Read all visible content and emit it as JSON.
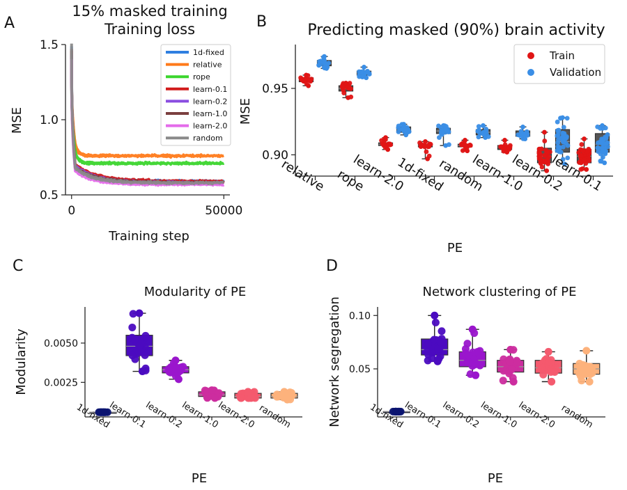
{
  "chart_data": [
    {
      "panel_label": "A",
      "type": "line",
      "title_line1": "15% masked training",
      "title_line2": "Training loss",
      "xlabel": "Training step",
      "ylabel": "MSE",
      "xlim": [
        -2000,
        52000
      ],
      "ylim": [
        0.5,
        1.5
      ],
      "xticks": [
        0,
        50000
      ],
      "xtick_labels": [
        "0",
        "50000"
      ],
      "yticks": [
        0.5,
        1.0,
        1.5
      ],
      "ytick_labels": [
        "0.5",
        "1.0",
        "1.5"
      ],
      "legend_position": "top-right",
      "series": [
        {
          "name": "1d-fixed",
          "color": "#2f7fe0",
          "start": 1.49,
          "plateau": 0.6,
          "final": 0.59,
          "tau": 7000
        },
        {
          "name": "relative",
          "color": "#ff7a1a",
          "start": 1.38,
          "plateau": 0.76,
          "final": 0.76,
          "tau": 1000
        },
        {
          "name": "rope",
          "color": "#3bd52d",
          "start": 1.32,
          "plateau": 0.71,
          "final": 0.71,
          "tau": 1000
        },
        {
          "name": "learn-0.1",
          "color": "#d11b1b",
          "start": 1.45,
          "plateau": 0.62,
          "final": 0.59,
          "tau": 7000
        },
        {
          "name": "learn-0.2",
          "color": "#8a4de0",
          "start": 1.43,
          "plateau": 0.61,
          "final": 0.58,
          "tau": 7000
        },
        {
          "name": "learn-1.0",
          "color": "#7b3f3f",
          "start": 1.47,
          "plateau": 0.6,
          "final": 0.58,
          "tau": 7000
        },
        {
          "name": "learn-2.0",
          "color": "#e46bea",
          "start": 1.4,
          "plateau": 0.58,
          "final": 0.57,
          "tau": 6000
        },
        {
          "name": "random",
          "color": "#8a8a8a",
          "start": 1.5,
          "plateau": 0.6,
          "final": 0.58,
          "tau": 6000
        }
      ]
    },
    {
      "panel_label": "B",
      "type": "box-strip",
      "title": "Predicting masked (90%) brain activity",
      "xlabel": "PE",
      "ylabel": "MSE",
      "ylim": [
        0.884,
        0.983
      ],
      "yticks": [
        0.9,
        0.95
      ],
      "ytick_labels": [
        "0.90",
        "0.95"
      ],
      "categories": [
        "relative",
        "rope",
        "learn-2.0",
        "1d-fixed",
        "random",
        "learn-1.0",
        "learn-0.2",
        "learn-0.1"
      ],
      "legend_position": "top-right",
      "series": [
        {
          "name": "Train",
          "color": "#e01515",
          "box_color": "#555555",
          "boxes": [
            {
              "q1": 0.955,
              "median": 0.957,
              "q3": 0.958,
              "low": 0.952,
              "high": 0.96
            },
            {
              "q1": 0.948,
              "median": 0.95,
              "q3": 0.952,
              "low": 0.943,
              "high": 0.954
            },
            {
              "q1": 0.907,
              "median": 0.908,
              "q3": 0.909,
              "low": 0.904,
              "high": 0.913
            },
            {
              "q1": 0.906,
              "median": 0.907,
              "q3": 0.908,
              "low": 0.897,
              "high": 0.91
            },
            {
              "q1": 0.906,
              "median": 0.907,
              "q3": 0.908,
              "low": 0.903,
              "high": 0.911
            },
            {
              "q1": 0.904,
              "median": 0.906,
              "q3": 0.907,
              "low": 0.902,
              "high": 0.911
            },
            {
              "q1": 0.894,
              "median": 0.899,
              "q3": 0.905,
              "low": 0.888,
              "high": 0.917
            },
            {
              "q1": 0.894,
              "median": 0.899,
              "q3": 0.904,
              "low": 0.889,
              "high": 0.912
            }
          ]
        },
        {
          "name": "Validation",
          "color": "#3a8ee6",
          "box_color": "#555555",
          "boxes": [
            {
              "q1": 0.967,
              "median": 0.969,
              "q3": 0.971,
              "low": 0.965,
              "high": 0.974
            },
            {
              "q1": 0.96,
              "median": 0.961,
              "q3": 0.963,
              "low": 0.958,
              "high": 0.966
            },
            {
              "q1": 0.917,
              "median": 0.919,
              "q3": 0.921,
              "low": 0.915,
              "high": 0.923
            },
            {
              "q1": 0.916,
              "median": 0.918,
              "q3": 0.92,
              "low": 0.907,
              "high": 0.922
            },
            {
              "q1": 0.915,
              "median": 0.917,
              "q3": 0.919,
              "low": 0.913,
              "high": 0.922
            },
            {
              "q1": 0.914,
              "median": 0.916,
              "q3": 0.918,
              "low": 0.912,
              "high": 0.921
            },
            {
              "q1": 0.902,
              "median": 0.91,
              "q3": 0.919,
              "low": 0.893,
              "high": 0.928
            },
            {
              "q1": 0.902,
              "median": 0.908,
              "q3": 0.916,
              "low": 0.894,
              "high": 0.922
            }
          ]
        }
      ]
    },
    {
      "panel_label": "C",
      "type": "box-strip",
      "title": "Modularity of PE",
      "xlabel": "PE",
      "ylabel": "Modularity",
      "ylim": [
        0.0003,
        0.0073
      ],
      "yticks": [
        0.0025,
        0.005
      ],
      "ytick_labels": [
        "0.0025",
        "0.0050"
      ],
      "categories": [
        "1d-fixed",
        "learn-0.1",
        "learn-0.2",
        "learn-1.0",
        "learn-2.0",
        "random"
      ],
      "colors": [
        "#0b1470",
        "#4b0bc0",
        "#9a16cc",
        "#cc2d9f",
        "#f45a6e",
        "#fdb27c"
      ],
      "boxes": [
        {
          "q1": 0.0006,
          "median": 0.0006,
          "q3": 0.0006,
          "low": 0.0006,
          "high": 0.0006
        },
        {
          "q1": 0.0042,
          "median": 0.0048,
          "q3": 0.0055,
          "low": 0.0032,
          "high": 0.0069
        },
        {
          "q1": 0.0031,
          "median": 0.0033,
          "q3": 0.0035,
          "low": 0.0027,
          "high": 0.0039
        },
        {
          "q1": 0.0016,
          "median": 0.0017,
          "q3": 0.0019,
          "low": 0.0015,
          "high": 0.002
        },
        {
          "q1": 0.0015,
          "median": 0.0016,
          "q3": 0.0018,
          "low": 0.0015,
          "high": 0.0019
        },
        {
          "q1": 0.0015,
          "median": 0.0016,
          "q3": 0.0018,
          "low": 0.0014,
          "high": 0.0019
        }
      ]
    },
    {
      "panel_label": "D",
      "type": "box-strip",
      "title": "Network clustering of PE",
      "xlabel": "PE",
      "ylabel": "Network segregation",
      "ylim": [
        0.005,
        0.108
      ],
      "yticks": [
        0.05,
        0.1
      ],
      "ytick_labels": [
        "0.05",
        "0.10"
      ],
      "categories": [
        "1d-fixed",
        "learn-0.1",
        "learn-0.2",
        "learn-1.0",
        "learn-2.0",
        "random"
      ],
      "colors": [
        "#0b1470",
        "#4b0bc0",
        "#9a16cc",
        "#cc2d9f",
        "#f45a6e",
        "#fdb27c"
      ],
      "boxes": [
        {
          "q1": 0.01,
          "median": 0.01,
          "q3": 0.01,
          "low": 0.01,
          "high": 0.01
        },
        {
          "q1": 0.063,
          "median": 0.068,
          "q3": 0.078,
          "low": 0.057,
          "high": 0.1
        },
        {
          "q1": 0.052,
          "median": 0.058,
          "q3": 0.066,
          "low": 0.044,
          "high": 0.087
        },
        {
          "q1": 0.047,
          "median": 0.052,
          "q3": 0.058,
          "low": 0.038,
          "high": 0.068
        },
        {
          "q1": 0.046,
          "median": 0.051,
          "q3": 0.058,
          "low": 0.038,
          "high": 0.066
        },
        {
          "q1": 0.045,
          "median": 0.05,
          "q3": 0.055,
          "low": 0.038,
          "high": 0.067
        }
      ]
    }
  ]
}
